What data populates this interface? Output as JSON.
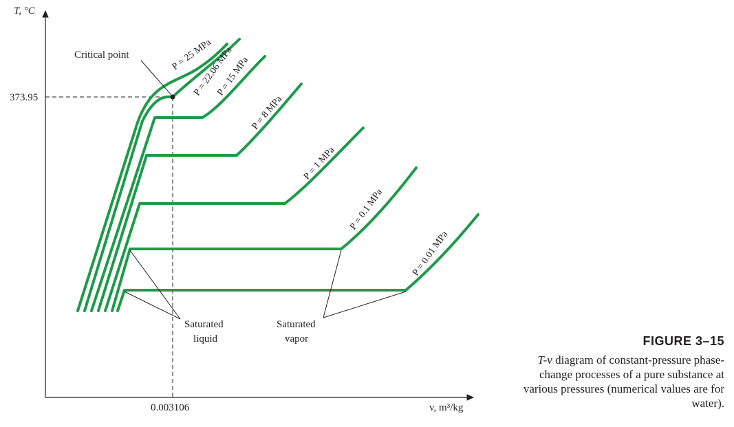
{
  "axes": {
    "y_label": "T, °C",
    "x_label": "v, m³/kg",
    "critical_temperature": "373.95",
    "critical_volume": "0.003106"
  },
  "annotations": {
    "critical_point": "Critical point",
    "saturated_liquid": [
      "Saturated",
      "liquid"
    ],
    "saturated_vapor": [
      "Saturated",
      "vapor"
    ]
  },
  "isobars": [
    {
      "label": "P = 25 MPa"
    },
    {
      "label": "P = 22.06 MPa"
    },
    {
      "label": "P = 15 MPa"
    },
    {
      "label": "P = 8 MPa"
    },
    {
      "label": "P = 1 MPa"
    },
    {
      "label": "P = 0.1 MPa"
    },
    {
      "label": "P = 0.01 MPa"
    }
  ],
  "caption": {
    "title": "FIGURE 3–15",
    "text_prefix": "T-v",
    "text": "diagram of constant-pressure phase-change processes of a pure substance at various pressures (numerical values are for water)."
  },
  "colors": {
    "curve": "#1e9a4a",
    "ink": "#231f20"
  }
}
